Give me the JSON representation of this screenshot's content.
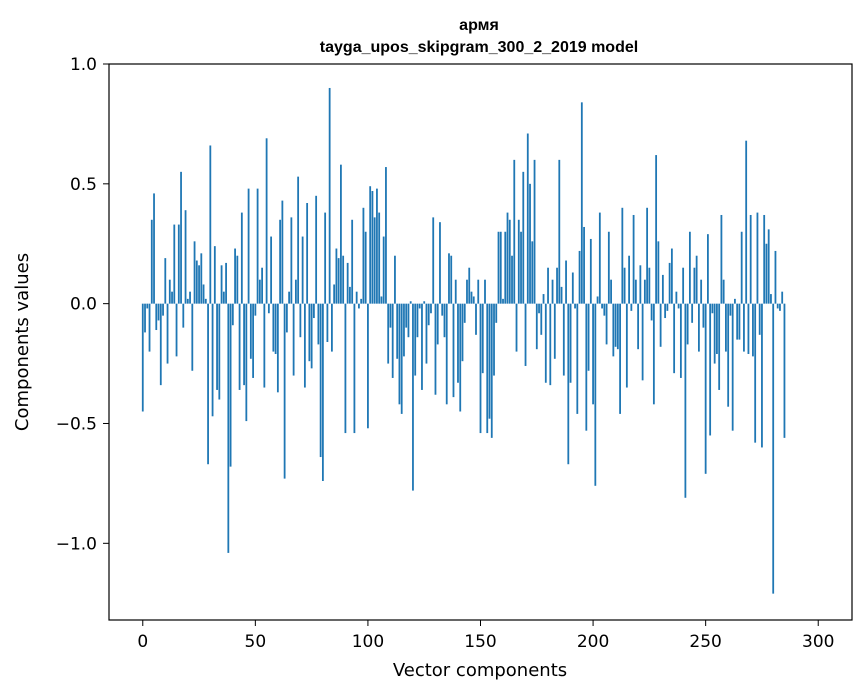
{
  "chart_data": {
    "type": "bar",
    "title_line1": "армя",
    "title_line2": "tayga_upos_skipgram_300_2_2019 model",
    "xlabel": "Vector components",
    "ylabel": "Components values",
    "xlim": [
      -15,
      315
    ],
    "ylim": [
      -1.32,
      1.0
    ],
    "xticks": [
      0,
      50,
      100,
      150,
      200,
      250,
      300
    ],
    "xtick_labels": [
      "0",
      "50",
      "100",
      "150",
      "200",
      "250",
      "300"
    ],
    "yticks": [
      1.0,
      0.5,
      0.0,
      -0.5,
      -1.0
    ],
    "ytick_labels": [
      "1.0",
      "0.5",
      "0.0",
      "−0.5",
      "−1.0"
    ],
    "bar_color": "#1f77b4",
    "values": [
      -0.45,
      -0.12,
      -0.02,
      -0.2,
      0.35,
      0.46,
      -0.11,
      -0.07,
      -0.34,
      -0.05,
      0.19,
      -0.25,
      0.1,
      0.05,
      0.33,
      -0.22,
      0.33,
      0.55,
      -0.1,
      0.39,
      0.02,
      0.05,
      -0.28,
      0.26,
      0.18,
      0.16,
      0.21,
      0.08,
      0.02,
      -0.67,
      0.66,
      -0.47,
      0.24,
      -0.36,
      -0.4,
      0.16,
      0.05,
      0.17,
      -1.04,
      -0.68,
      -0.09,
      0.23,
      0.2,
      -0.36,
      0.38,
      -0.34,
      -0.49,
      0.48,
      -0.23,
      -0.31,
      -0.05,
      0.48,
      0.1,
      0.15,
      -0.35,
      0.69,
      -0.04,
      0.28,
      -0.2,
      -0.21,
      -0.37,
      0.35,
      0.43,
      -0.73,
      -0.12,
      0.05,
      0.36,
      -0.3,
      0.1,
      0.53,
      -0.14,
      0.28,
      -0.35,
      0.42,
      -0.24,
      -0.27,
      -0.06,
      0.45,
      -0.17,
      -0.64,
      -0.74,
      0.38,
      -0.16,
      0.9,
      -0.2,
      0.08,
      0.23,
      0.19,
      0.58,
      0.2,
      -0.54,
      0.17,
      0.07,
      0.35,
      -0.54,
      0.05,
      -0.02,
      0.02,
      0.4,
      0.3,
      -0.52,
      0.49,
      0.47,
      0.36,
      0.48,
      0.38,
      0.03,
      0.28,
      0.57,
      -0.25,
      -0.1,
      -0.31,
      0.2,
      -0.23,
      -0.42,
      -0.46,
      -0.22,
      -0.1,
      -0.14,
      0.01,
      -0.78,
      -0.3,
      -0.14,
      -0.02,
      -0.36,
      0.01,
      -0.25,
      -0.09,
      -0.04,
      0.36,
      -0.38,
      -0.17,
      0.34,
      -0.05,
      -0.14,
      -0.42,
      0.21,
      0.2,
      -0.39,
      0.1,
      -0.33,
      -0.45,
      -0.24,
      -0.08,
      0.1,
      0.15,
      0.05,
      0.03,
      -0.13,
      0.1,
      -0.54,
      -0.29,
      0.1,
      -0.54,
      -0.48,
      -0.56,
      -0.3,
      -0.08,
      0.3,
      0.3,
      0.02,
      0.3,
      0.38,
      0.35,
      0.2,
      0.6,
      -0.2,
      0.35,
      0.3,
      0.55,
      -0.26,
      0.71,
      0.5,
      0.26,
      0.6,
      -0.19,
      -0.04,
      -0.13,
      0.04,
      -0.33,
      0.15,
      -0.34,
      0.1,
      -0.23,
      0.15,
      0.6,
      0.07,
      -0.3,
      0.18,
      -0.67,
      -0.33,
      0.13,
      -0.02,
      -0.46,
      0.22,
      0.84,
      0.32,
      -0.53,
      -0.28,
      0.27,
      -0.42,
      -0.76,
      0.03,
      0.38,
      -0.02,
      -0.05,
      -0.17,
      0.3,
      0.1,
      -0.22,
      -0.18,
      -0.19,
      -0.46,
      0.4,
      0.15,
      -0.35,
      0.2,
      -0.03,
      0.37,
      0.1,
      -0.19,
      0.16,
      -0.32,
      0.1,
      0.4,
      0.15,
      -0.07,
      -0.42,
      0.62,
      0.26,
      -0.18,
      0.12,
      -0.06,
      -0.03,
      0.17,
      0.23,
      -0.29,
      0.05,
      -0.02,
      -0.31,
      0.15,
      -0.81,
      -0.17,
      0.3,
      -0.08,
      0.15,
      0.2,
      -0.2,
      0.1,
      -0.1,
      -0.71,
      0.29,
      -0.55,
      -0.04,
      -0.25,
      -0.21,
      -0.36,
      0.37,
      0.1,
      -0.2,
      -0.43,
      -0.05,
      -0.53,
      0.02,
      -0.15,
      -0.15,
      0.3,
      -0.2,
      0.68,
      -0.21,
      0.37,
      -0.22,
      -0.58,
      0.38,
      -0.13,
      -0.6,
      0.37,
      0.25,
      0.31,
      0.04,
      -1.21,
      0.22,
      -0.02,
      -0.03,
      0.05,
      -0.56
    ]
  }
}
